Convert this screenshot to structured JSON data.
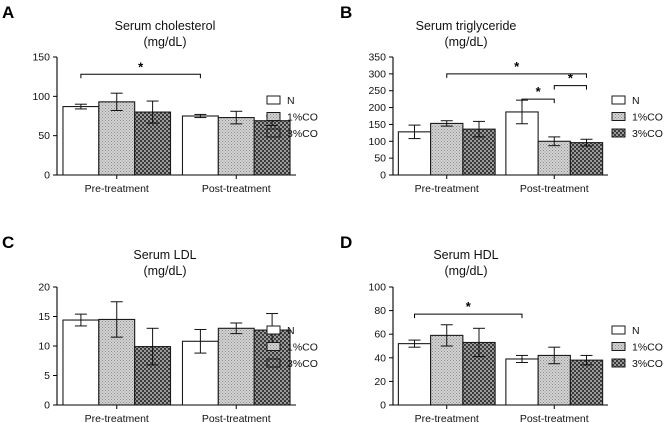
{
  "colors": {
    "N": "#ffffff",
    "1%CO": "#c8c8c8",
    "3%CO": "#7a7a7a",
    "stroke": "#1a1a1a"
  },
  "chart_data": [
    {
      "panel": "A",
      "type": "bar",
      "title": "Serum cholesterol",
      "subtitle": "(mg/dL)",
      "categories": [
        "Pre-treatment",
        "Post-treatment"
      ],
      "series": [
        {
          "name": "N",
          "values": [
            87,
            75
          ],
          "errors": [
            3,
            2
          ]
        },
        {
          "name": "1%CO",
          "values": [
            93,
            73
          ],
          "errors": [
            11,
            8
          ]
        },
        {
          "name": "3%CO",
          "values": [
            80,
            69
          ],
          "errors": [
            14,
            6
          ]
        }
      ],
      "ylim": [
        0,
        150
      ],
      "yticks": [
        0,
        50,
        100,
        150
      ],
      "legend": "right",
      "significance": [
        {
          "from": [
            0,
            0
          ],
          "to": [
            1,
            0
          ],
          "y": 128,
          "label": "*"
        }
      ]
    },
    {
      "panel": "B",
      "type": "bar",
      "title": "Serum triglyceride",
      "subtitle": "(mg/dL)",
      "categories": [
        "Pre-treatment",
        "Post-treatment"
      ],
      "series": [
        {
          "name": "N",
          "values": [
            128,
            187
          ],
          "errors": [
            20,
            35
          ]
        },
        {
          "name": "1%CO",
          "values": [
            153,
            100
          ],
          "errors": [
            8,
            13
          ]
        },
        {
          "name": "3%CO",
          "values": [
            136,
            96
          ],
          "errors": [
            23,
            10
          ]
        }
      ],
      "ylim": [
        0,
        350
      ],
      "yticks": [
        0,
        50,
        100,
        150,
        200,
        250,
        300,
        350
      ],
      "legend": "right",
      "significance": [
        {
          "from": [
            0,
            1
          ],
          "to": [
            1,
            2
          ],
          "y": 300,
          "label": "*"
        },
        {
          "from": [
            1,
            1
          ],
          "to": [
            1,
            2
          ],
          "y": 265,
          "label": "*"
        },
        {
          "from": [
            1,
            0
          ],
          "to": [
            1,
            1
          ],
          "y": 225,
          "label": "*"
        }
      ]
    },
    {
      "panel": "C",
      "type": "bar",
      "title": "Serum LDL",
      "subtitle": "(mg/dL)",
      "categories": [
        "Pre-treatment",
        "Post-treatment"
      ],
      "series": [
        {
          "name": "N",
          "values": [
            14.4,
            10.8
          ],
          "errors": [
            1.0,
            2.0
          ]
        },
        {
          "name": "1%CO",
          "values": [
            14.5,
            13.0
          ],
          "errors": [
            3.0,
            0.9
          ]
        },
        {
          "name": "3%CO",
          "values": [
            9.9,
            12.7
          ],
          "errors": [
            3.1,
            2.8
          ]
        }
      ],
      "ylim": [
        0,
        20
      ],
      "yticks": [
        0,
        5,
        10,
        15,
        20
      ],
      "legend": "right",
      "significance": []
    },
    {
      "panel": "D",
      "type": "bar",
      "title": "Serum HDL",
      "subtitle": "(mg/dL)",
      "categories": [
        "Pre-treatment",
        "Post-treatment"
      ],
      "series": [
        {
          "name": "N",
          "values": [
            52,
            39
          ],
          "errors": [
            3,
            3
          ]
        },
        {
          "name": "1%CO",
          "values": [
            59,
            42
          ],
          "errors": [
            9,
            7
          ]
        },
        {
          "name": "3%CO",
          "values": [
            53,
            38
          ],
          "errors": [
            12,
            4
          ]
        }
      ],
      "ylim": [
        0,
        100
      ],
      "yticks": [
        0,
        20,
        40,
        60,
        80,
        100
      ],
      "legend": "right",
      "significance": [
        {
          "from": [
            0,
            0
          ],
          "to": [
            1,
            0
          ],
          "y": 77,
          "label": "*"
        }
      ]
    }
  ]
}
